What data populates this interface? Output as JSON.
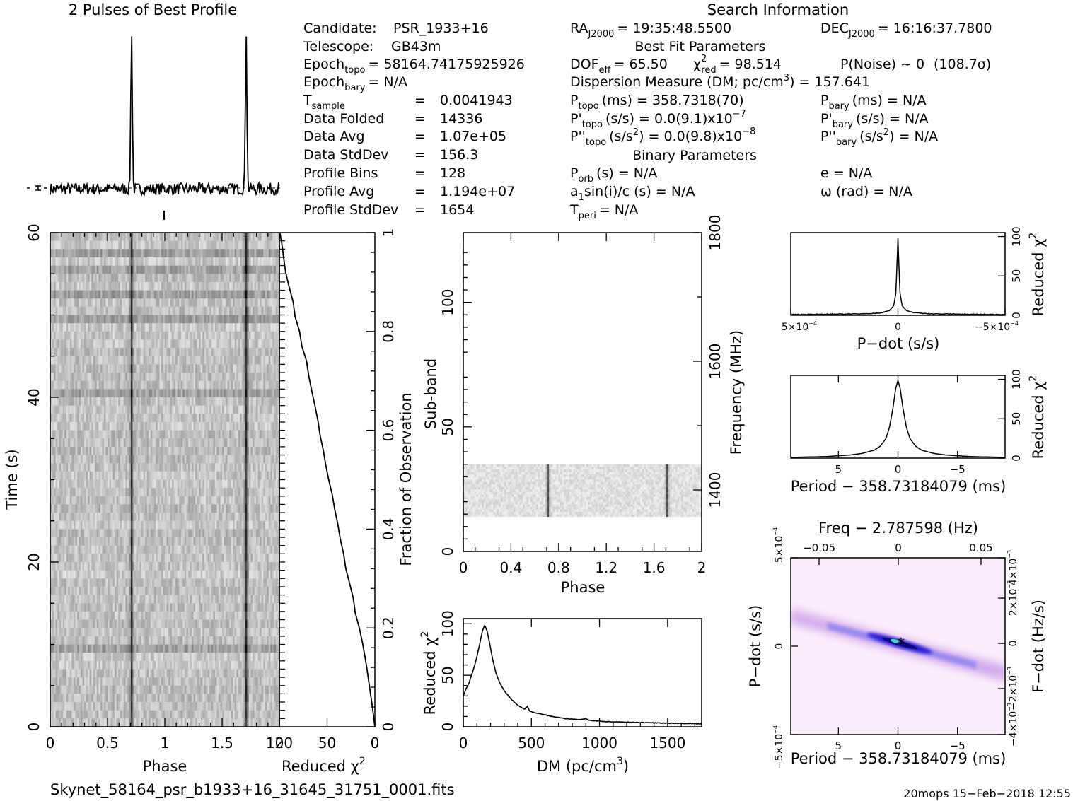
{
  "header": {
    "profile_title": "2 Pulses of Best Profile",
    "search_title": "Search Information",
    "best_fit_title": "Best Fit Parameters",
    "binary_title": "Binary Parameters"
  },
  "search_info": {
    "candidate_label": "Candidate:",
    "candidate": "PSR_1933+16",
    "telescope_label": "Telescope:",
    "telescope": "GB43m",
    "epoch_topo_label": "Epoch",
    "epoch_topo_sub": "topo",
    "epoch_topo": "= 58164.74175925926",
    "epoch_bary_label": "Epoch",
    "epoch_bary_sub": "bary",
    "epoch_bary": "= N/A",
    "rows": [
      {
        "label": "T",
        "sub": "sample",
        "eq": "=",
        "value": "0.0041943"
      },
      {
        "label": "Data Folded",
        "sub": "",
        "eq": "=",
        "value": "14336"
      },
      {
        "label": "Data Avg",
        "sub": "",
        "eq": "=",
        "value": "1.07e+05"
      },
      {
        "label": "Data StdDev",
        "sub": "",
        "eq": "=",
        "value": "156.3"
      },
      {
        "label": "Profile Bins",
        "sub": "",
        "eq": "=",
        "value": "128"
      },
      {
        "label": "Profile Avg",
        "sub": "",
        "eq": "=",
        "value": "1.194e+07"
      },
      {
        "label": "Profile StdDev",
        "sub": "",
        "eq": "=",
        "value": "1654"
      }
    ],
    "ra": "RA",
    "ra_sub": "J2000",
    "ra_value": "= 19:35:48.5500",
    "dec": "DEC",
    "dec_sub": "J2000",
    "dec_value": "= 16:16:37.7800"
  },
  "best_fit": {
    "dof": "DOF",
    "dof_sub": "eff",
    "dof_value": "= 65.50",
    "chi": "χ",
    "chi_sup": "2",
    "chi_sub": "red",
    "chi_value": "= 98.514",
    "pnoise": "P(Noise) ~ 0",
    "sigma": "(108.7σ)",
    "dm_line": "Dispersion Measure (DM; pc/cm",
    "dm_sup": "3",
    "dm_value": ") = 157.641",
    "p_topo": "P",
    "p_topo_sub": "topo",
    "p_topo_value": "(ms) =  358.7318(70)",
    "pd_topo": "P'",
    "pd_topo_sub": "topo",
    "pd_topo_value": "(s/s) = 0.0(9.1)x10",
    "pd_topo_exp": "−7",
    "pdd_topo": "P''",
    "pdd_topo_sub": "topo",
    "pdd_topo_value": "(s/s",
    "pdd_topo_sup": "2",
    "pdd_topo_value2": ") = 0.0(9.8)x10",
    "pdd_topo_exp": "−8",
    "p_bary": "P",
    "p_bary_sub": "bary",
    "p_bary_value": "(ms) = N/A",
    "pd_bary": "P'",
    "pd_bary_sub": "bary",
    "pd_bary_value": "(s/s) = N/A",
    "pdd_bary": "P''",
    "pdd_bary_sub": "bary",
    "pdd_bary_value": "(s/s",
    "pdd_bary_sup": "2",
    "pdd_bary_value2": ") = N/A"
  },
  "binary": {
    "porb": "P",
    "porb_sub": "orb",
    "porb_value": "(s) = N/A",
    "a1": "a",
    "a1_sub": "1",
    "a1_value": "sin(i)/c (s) = N/A",
    "tperi": "T",
    "tperi_sub": "peri",
    "tperi_value": "= N/A",
    "e": "e = N/A",
    "omega": "ω (rad) = N/A"
  },
  "footer": {
    "filename": "Skynet_58164_psr_b1933+16_31645_31751_0001.fits",
    "datestamp": "20mops 15−Feb−2018 12:55"
  },
  "chart_data": [
    {
      "type": "line",
      "id": "profile",
      "title": "2 Pulses of Best Profile",
      "phase_peaks": [
        0.71,
        1.71
      ]
    },
    {
      "type": "heatmap",
      "id": "time-phase",
      "xlabel": "Phase",
      "ylabel": "Time (s)",
      "xlim": [
        0,
        2
      ],
      "ylim": [
        0,
        60
      ],
      "xticks": [
        "0",
        "0.5",
        "1",
        "1.5",
        "2"
      ],
      "yticks": [
        "0",
        "20",
        "40",
        "60"
      ],
      "pulse_phases": [
        0.71,
        1.71
      ]
    },
    {
      "type": "line",
      "id": "reduced-chi2-time",
      "xlabel": "Reduced χ",
      "xlabel_sup": "2",
      "ylabel": "Fraction of Observation",
      "xlim": [
        100,
        0
      ],
      "ylim": [
        0,
        1
      ],
      "xticks": [
        "100",
        "50",
        "0"
      ],
      "yticks": [
        "0",
        "0.2",
        "0.4",
        "0.6",
        "0.8",
        "1"
      ],
      "x": [
        100,
        98,
        96,
        93,
        90,
        86,
        83,
        79,
        76,
        72,
        69,
        66,
        63,
        60,
        57,
        54,
        51,
        48,
        45,
        42,
        39,
        36,
        33,
        30,
        27,
        23,
        20,
        16,
        13,
        10,
        9,
        6,
        3,
        0
      ],
      "y": [
        1.0,
        0.98,
        0.95,
        0.92,
        0.89,
        0.86,
        0.83,
        0.8,
        0.77,
        0.74,
        0.71,
        0.68,
        0.65,
        0.62,
        0.59,
        0.56,
        0.53,
        0.5,
        0.47,
        0.44,
        0.41,
        0.38,
        0.35,
        0.32,
        0.29,
        0.26,
        0.23,
        0.2,
        0.17,
        0.14,
        0.12,
        0.08,
        0.04,
        0.0
      ]
    },
    {
      "type": "heatmap",
      "id": "subband-phase",
      "xlabel": "Phase",
      "ylabel": "Sub-band",
      "y2label": "Frequency (MHz)",
      "xlim": [
        0,
        2
      ],
      "ylim": [
        0,
        128
      ],
      "band": [
        14,
        35
      ],
      "xticks": [
        "0",
        "0.4",
        "0.8",
        "1.2",
        "1.6",
        "2"
      ],
      "yticks": [
        "0",
        "50",
        "100"
      ],
      "y2ticks": [
        "1400",
        "1600",
        "1800"
      ],
      "pulse_phases": [
        0.71,
        1.71
      ]
    },
    {
      "type": "line",
      "id": "dm-chi2",
      "xlabel": "DM (pc/cm",
      "xlabel_sup": "3",
      "xlabel_end": ")",
      "ylabel": "Reduced χ",
      "ylabel_sup": "2",
      "xlim": [
        0,
        1750
      ],
      "ylim": [
        0,
        105
      ],
      "xticks": [
        "0",
        "500",
        "1000",
        "1500"
      ],
      "yticks": [
        "0",
        "50",
        "100"
      ],
      "x": [
        0,
        20,
        40,
        60,
        80,
        100,
        120,
        140,
        157.641,
        175,
        195,
        215,
        240,
        270,
        300,
        350,
        400,
        450,
        470,
        490,
        550,
        650,
        750,
        850,
        900,
        920,
        950,
        1050,
        1200,
        1350,
        1500,
        1650,
        1750
      ],
      "y": [
        30,
        37,
        42,
        50,
        58,
        68,
        80,
        93,
        98.5,
        93,
        80,
        66,
        52,
        42,
        35,
        27,
        21,
        17,
        20,
        15,
        13,
        10,
        8,
        7,
        8,
        6.5,
        6,
        5,
        4.5,
        4,
        3.5,
        3.2,
        3
      ]
    },
    {
      "type": "line",
      "id": "pdot-chi2",
      "xlabel": "P−dot (s/s)",
      "ylabel": "Reduced χ",
      "ylabel_sup": "2",
      "xlim": [
        0.0005,
        -0.0005
      ],
      "ylim": [
        0,
        105
      ],
      "xticks": [
        "5×10",
        "0",
        "−5×10"
      ],
      "xtick_exp": "−4",
      "yticks": [
        "0",
        "50",
        "100"
      ],
      "x": [
        0.0005,
        0.0003,
        0.00015,
        8e-05,
        4e-05,
        2e-05,
        1e-05,
        5e-06,
        0,
        -5e-06,
        -1e-05,
        -2e-05,
        -4e-05,
        -8e-05,
        -0.00015,
        -0.0003,
        -0.0005
      ],
      "y": [
        1,
        1.5,
        2,
        3,
        6,
        12,
        28,
        60,
        98.5,
        60,
        28,
        12,
        6,
        3,
        2,
        1.5,
        1
      ]
    },
    {
      "type": "line",
      "id": "period-chi2",
      "xlabel": "Period − 358.73184079 (ms)",
      "ylabel": "Reduced χ",
      "ylabel_sup": "2",
      "xlim": [
        9,
        -9
      ],
      "ylim": [
        0,
        105
      ],
      "xticks": [
        "5",
        "0",
        "−5"
      ],
      "yticks": [
        "0",
        "50",
        "100"
      ],
      "x": [
        9,
        6,
        4,
        3,
        2,
        1.5,
        1,
        0.7,
        0.4,
        0.2,
        0,
        -0.2,
        -0.4,
        -0.7,
        -1,
        -1.5,
        -2,
        -3,
        -4,
        -6,
        -9
      ],
      "y": [
        1,
        2,
        4,
        6,
        10,
        15,
        25,
        40,
        65,
        88,
        98.5,
        88,
        65,
        40,
        25,
        15,
        10,
        6,
        4,
        2,
        1
      ]
    },
    {
      "type": "heatmap",
      "id": "period-pdot",
      "title": "Freq − 2.787598 (Hz)",
      "xlabel": "Period − 358.73184079 (ms)",
      "ylabel": "P−dot (s/s)",
      "y2label": "F−dot (Hz/s)",
      "xlim": [
        9,
        -9
      ],
      "ylim": [
        0.0005,
        -0.0005
      ],
      "xticks": [
        "5",
        "0",
        "−5"
      ],
      "x2ticks": [
        "−0.05",
        "0",
        "0.05"
      ],
      "yticks": [
        "5×10",
        "0",
        "−5×10"
      ],
      "ytick_exp": "−4",
      "y2ticks": [
        "−4×10",
        "−2×10",
        "0",
        "2×10",
        "4×10"
      ],
      "y2tick_exp": "−3"
    }
  ]
}
